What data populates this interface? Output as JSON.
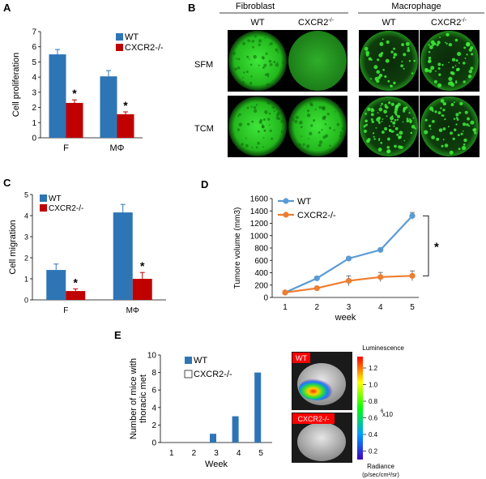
{
  "panels": {
    "a_letter": "A",
    "b_letter": "B",
    "c_letter": "C",
    "d_letter": "D",
    "e_letter": "E"
  },
  "colors": {
    "wt_blue": "#2e75b6",
    "ko_red": "#c00000",
    "line_blue": "#5b9bd5",
    "line_orange": "#ed7d31",
    "fluor_green": "#22c41c"
  },
  "micro": {
    "fibroblast_label": "Fibroblast",
    "macrophage_label": "Macrophage",
    "columns": [
      "WT",
      "CXCR2",
      "WT",
      "CXCR2"
    ],
    "column_sup": [
      "",
      "-/-",
      "",
      "-/-"
    ],
    "rows": [
      "SFM",
      "TCM"
    ]
  },
  "imaging": {
    "wt_tag": "WT",
    "ko_tag": "CXCR2-/-",
    "luminescence_label": "Luminescence",
    "scale_ticks": [
      "1.2",
      "1.0",
      "0.8",
      "0.6",
      "0.4",
      "0.2"
    ],
    "scale_exponent": "x10",
    "scale_exp_power": "6",
    "radiance_label": "Radiance",
    "radiance_unit": "(p/sec/cm²/sr)"
  },
  "chart_data": [
    {
      "id": "A",
      "type": "bar",
      "categories": [
        "F",
        "MΦ"
      ],
      "ylabel": "Cell proliferation",
      "ylim": [
        0,
        7
      ],
      "yticks": [
        0,
        1,
        2,
        3,
        4,
        5,
        6,
        7
      ],
      "legend_position": "top-right",
      "series": [
        {
          "name": "WT",
          "color": "#2e75b6",
          "values": [
            5.5,
            4.05
          ],
          "errors": [
            0.32,
            0.38
          ]
        },
        {
          "name": "CXCR2-/-",
          "color": "#c00000",
          "values": [
            2.3,
            1.55
          ],
          "errors": [
            0.2,
            0.16
          ]
        }
      ],
      "significance": [
        "*",
        "*"
      ]
    },
    {
      "id": "C",
      "type": "bar",
      "categories": [
        "F",
        "MΦ"
      ],
      "ylabel": "Cell migration",
      "ylim": [
        0,
        5
      ],
      "yticks": [
        0,
        1,
        2,
        3,
        4,
        5
      ],
      "legend_position": "top-left",
      "series": [
        {
          "name": "WT",
          "color": "#2e75b6",
          "values": [
            1.42,
            4.15
          ],
          "errors": [
            0.28,
            0.38
          ]
        },
        {
          "name": "CXCR2-/-",
          "color": "#c00000",
          "values": [
            0.42,
            1.0
          ],
          "errors": [
            0.1,
            0.3
          ]
        }
      ],
      "significance": [
        "*",
        "*"
      ]
    },
    {
      "id": "D",
      "type": "line",
      "x": [
        1,
        2,
        3,
        4,
        5
      ],
      "xlabel": "week",
      "ylabel": "Tumore volume (mm3)",
      "ylim": [
        0,
        1600
      ],
      "yticks": [
        0,
        200,
        400,
        600,
        800,
        1000,
        1200,
        1400,
        1600
      ],
      "legend_position": "top-left",
      "series": [
        {
          "name": "WT",
          "color": "#5b9bd5",
          "values": [
            80,
            310,
            630,
            770,
            1320
          ],
          "errors": [
            15,
            25,
            25,
            20,
            55
          ]
        },
        {
          "name": "CXCR2-/-",
          "color": "#ed7d31",
          "values": [
            80,
            150,
            270,
            330,
            350
          ],
          "errors": [
            15,
            20,
            80,
            75,
            80
          ]
        }
      ],
      "significance": "*"
    },
    {
      "id": "E",
      "type": "bar",
      "categories": [
        "1",
        "2",
        "3",
        "4",
        "5"
      ],
      "xlabel": "Week",
      "ylabel": "Number of mice with thoracic met",
      "ylim": [
        0,
        10
      ],
      "yticks": [
        0,
        2,
        4,
        6,
        8,
        10
      ],
      "legend_position": "top-left",
      "series": [
        {
          "name": "WT",
          "color": "#2e75b6",
          "values": [
            0,
            0,
            1,
            3,
            8
          ]
        },
        {
          "name": "CXCR2-/-",
          "color": "#ffffff",
          "values": [
            0,
            0,
            0,
            0,
            0
          ]
        }
      ]
    }
  ]
}
